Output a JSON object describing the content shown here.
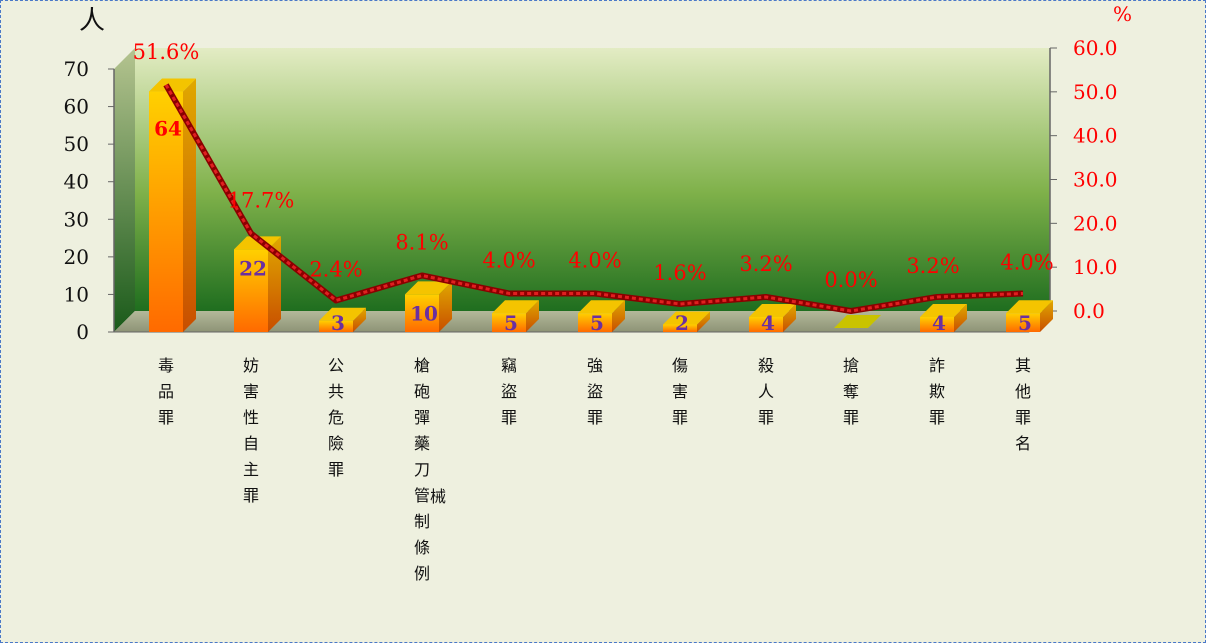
{
  "chart_data": {
    "type": "bar",
    "categories": [
      "毒品罪",
      "妨害性自主罪",
      "公共危險罪",
      "槍砲彈藥刀械管制條例",
      "竊盜罪",
      "強盜罪",
      "傷害罪",
      "殺人罪",
      "搶奪罪",
      "詐欺罪",
      "其他罪名"
    ],
    "series": [
      {
        "values": [
          64,
          22,
          3,
          10,
          5,
          5,
          2,
          4,
          0,
          4,
          5
        ],
        "axis": "left",
        "kind": "bar"
      },
      {
        "values": [
          51.6,
          17.7,
          2.4,
          8.1,
          4.0,
          4.0,
          1.6,
          3.2,
          0.0,
          3.2,
          4.0
        ],
        "axis": "right",
        "kind": "line"
      }
    ],
    "value_labels": [
      "64",
      "22",
      "3",
      "10",
      "5",
      "5",
      "2",
      "4",
      "",
      "4",
      "5"
    ],
    "percent_labels": [
      "51.6%",
      "17.7%",
      "2.4%",
      "8.1%",
      "4.0%",
      "4.0%",
      "1.6%",
      "3.2%",
      "0.0%",
      "3.2%",
      "4.0%"
    ],
    "ylabel_left": "人",
    "ylabel_right": "%",
    "ylim_left": [
      0,
      70
    ],
    "ylim_right": [
      0,
      60
    ],
    "left_ticks": [
      "0",
      "10",
      "20",
      "30",
      "40",
      "50",
      "60",
      "70"
    ],
    "right_ticks": [
      "0.0",
      "10.0",
      "20.0",
      "30.0",
      "40.0",
      "50.0",
      "60.0"
    ],
    "colors": {
      "bar_top": "#ffd000",
      "bar_bottom": "#ff6a00",
      "line": "#cc0000",
      "percent_label": "#ff0000",
      "bar_label_first": "#ff0000",
      "bar_label": "#6b2fa0",
      "right_axis_text": "#ff0000",
      "back_wall_top": "#e3ecc4",
      "back_wall_bottom": "#1f6e1f"
    },
    "grid": false,
    "legend": "none"
  }
}
